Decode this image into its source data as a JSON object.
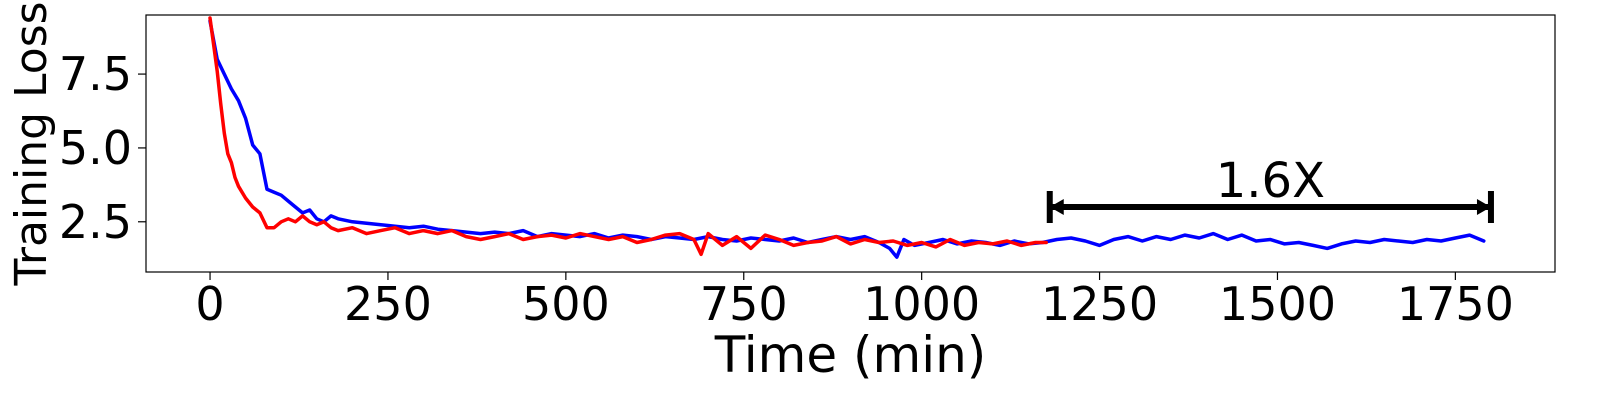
{
  "chart_data": {
    "type": "line",
    "title": "",
    "xlabel": "Time (min)",
    "ylabel": "Training Loss",
    "xlim": [
      -90,
      1890
    ],
    "ylim": [
      0.8,
      9.5
    ],
    "x_ticks": [
      0,
      250,
      500,
      750,
      1000,
      1250,
      1500,
      1750
    ],
    "x_tick_labels": [
      "0",
      "250",
      "500",
      "750",
      "1000",
      "1250",
      "1500",
      "1750"
    ],
    "y_ticks": [
      2.5,
      5.0,
      7.5
    ],
    "y_tick_labels": [
      "2.5",
      "5.0",
      "7.5"
    ],
    "grid": false,
    "legend": "none",
    "series": [
      {
        "color": "#0000ff",
        "x": [
          0,
          10,
          20,
          30,
          40,
          50,
          60,
          70,
          80,
          90,
          100,
          110,
          120,
          130,
          140,
          150,
          160,
          170,
          180,
          200,
          220,
          240,
          260,
          280,
          300,
          320,
          340,
          360,
          380,
          400,
          420,
          440,
          460,
          480,
          500,
          520,
          540,
          560,
          580,
          600,
          620,
          640,
          660,
          680,
          700,
          720,
          740,
          760,
          780,
          800,
          820,
          840,
          860,
          880,
          900,
          920,
          940,
          955,
          965,
          975,
          990,
          1010,
          1030,
          1050,
          1070,
          1090,
          1110,
          1130,
          1150,
          1170,
          1190,
          1210,
          1230,
          1250,
          1270,
          1290,
          1310,
          1330,
          1350,
          1370,
          1390,
          1410,
          1430,
          1450,
          1470,
          1490,
          1510,
          1530,
          1550,
          1570,
          1590,
          1610,
          1630,
          1650,
          1670,
          1690,
          1710,
          1730,
          1750,
          1770,
          1790
        ],
        "y": [
          9.3,
          8.0,
          7.5,
          7.0,
          6.6,
          6.0,
          5.1,
          4.8,
          3.6,
          3.5,
          3.4,
          3.2,
          3.0,
          2.8,
          2.9,
          2.6,
          2.5,
          2.7,
          2.6,
          2.5,
          2.45,
          2.4,
          2.35,
          2.3,
          2.35,
          2.25,
          2.2,
          2.15,
          2.1,
          2.15,
          2.1,
          2.2,
          2.0,
          2.1,
          2.05,
          2.0,
          2.1,
          1.95,
          2.05,
          2.0,
          1.9,
          2.0,
          1.95,
          1.9,
          2.0,
          1.9,
          1.85,
          1.95,
          1.9,
          1.85,
          1.95,
          1.8,
          1.9,
          2.0,
          1.9,
          2.0,
          1.8,
          1.6,
          1.3,
          1.9,
          1.7,
          1.8,
          1.9,
          1.75,
          1.85,
          1.8,
          1.7,
          1.85,
          1.75,
          1.8,
          1.9,
          1.95,
          1.85,
          1.7,
          1.9,
          2.0,
          1.85,
          2.0,
          1.9,
          2.05,
          1.95,
          2.1,
          1.9,
          2.05,
          1.85,
          1.9,
          1.75,
          1.8,
          1.7,
          1.6,
          1.75,
          1.85,
          1.8,
          1.9,
          1.85,
          1.8,
          1.9,
          1.85,
          1.95,
          2.05,
          1.85
        ]
      },
      {
        "color": "#ff0000",
        "x": [
          0,
          5,
          10,
          15,
          20,
          25,
          30,
          35,
          40,
          50,
          60,
          70,
          80,
          90,
          100,
          110,
          120,
          130,
          140,
          150,
          160,
          170,
          180,
          200,
          220,
          240,
          260,
          280,
          300,
          320,
          340,
          360,
          380,
          400,
          420,
          440,
          460,
          480,
          500,
          520,
          540,
          560,
          580,
          600,
          620,
          640,
          660,
          680,
          690,
          700,
          720,
          740,
          760,
          780,
          800,
          820,
          840,
          860,
          880,
          900,
          920,
          940,
          960,
          980,
          1000,
          1020,
          1040,
          1060,
          1080,
          1100,
          1120,
          1140,
          1160,
          1175
        ],
        "y": [
          9.4,
          8.5,
          7.6,
          6.5,
          5.5,
          4.8,
          4.5,
          4.0,
          3.7,
          3.3,
          3.0,
          2.8,
          2.3,
          2.3,
          2.5,
          2.6,
          2.5,
          2.7,
          2.5,
          2.4,
          2.5,
          2.3,
          2.2,
          2.3,
          2.1,
          2.2,
          2.3,
          2.1,
          2.2,
          2.1,
          2.2,
          2.0,
          1.9,
          2.0,
          2.1,
          1.9,
          2.0,
          2.05,
          1.95,
          2.1,
          2.0,
          1.9,
          2.0,
          1.8,
          1.9,
          2.05,
          2.1,
          1.9,
          1.4,
          2.1,
          1.7,
          2.0,
          1.6,
          2.05,
          1.9,
          1.7,
          1.8,
          1.85,
          2.0,
          1.75,
          1.9,
          1.8,
          1.85,
          1.7,
          1.8,
          1.65,
          1.9,
          1.7,
          1.8,
          1.75,
          1.85,
          1.7,
          1.8,
          1.8
        ]
      }
    ],
    "annotation": {
      "text": "1.6X",
      "x_start": 1180,
      "x_end": 1800,
      "y": 3.0,
      "color": "#000000"
    }
  }
}
